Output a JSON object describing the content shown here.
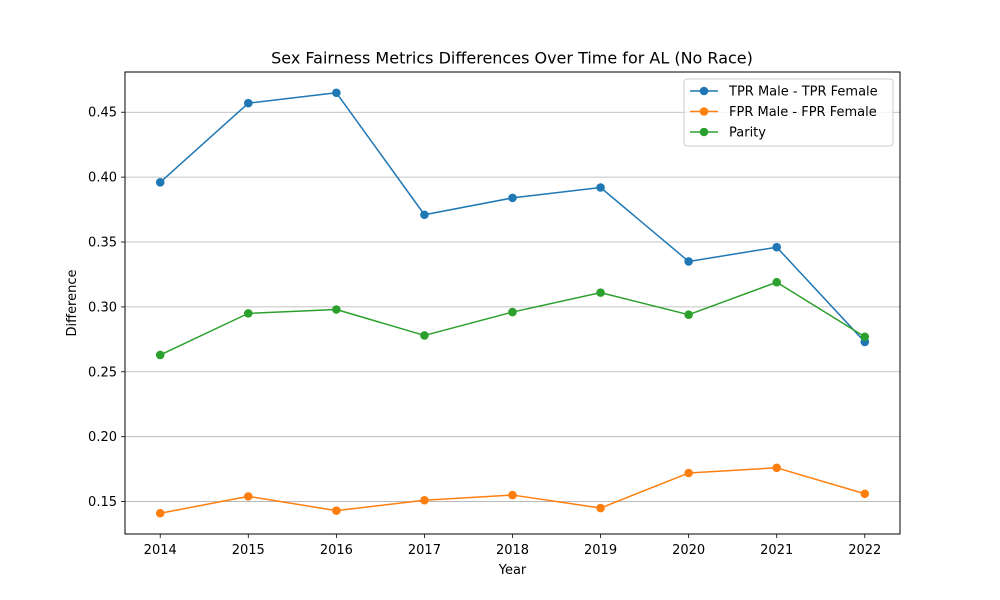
{
  "chart_data": {
    "type": "line",
    "title": "Sex Fairness Metrics Differences Over Time for AL (No Race)",
    "xlabel": "Year",
    "ylabel": "Difference",
    "x": [
      2014,
      2015,
      2016,
      2017,
      2018,
      2019,
      2020,
      2021,
      2022
    ],
    "xlim": [
      2013.6,
      2022.4
    ],
    "ylim": [
      0.125,
      0.481
    ],
    "yticks": [
      0.15,
      0.2,
      0.25,
      0.3,
      0.35,
      0.4,
      0.45
    ],
    "ytick_labels": [
      "0.15",
      "0.20",
      "0.25",
      "0.30",
      "0.35",
      "0.40",
      "0.45"
    ],
    "xtick_labels": [
      "2014",
      "2015",
      "2016",
      "2017",
      "2018",
      "2019",
      "2020",
      "2021",
      "2022"
    ],
    "grid": "y-axis",
    "legend_position": "top-right",
    "series": [
      {
        "name": "TPR Male - TPR Female",
        "color": "#1f77b4",
        "values": [
          0.396,
          0.457,
          0.465,
          0.371,
          0.384,
          0.392,
          0.335,
          0.346,
          0.273
        ]
      },
      {
        "name": "FPR Male - FPR Female",
        "color": "#ff7f0e",
        "values": [
          0.141,
          0.154,
          0.143,
          0.151,
          0.155,
          0.145,
          0.172,
          0.176,
          0.156
        ]
      },
      {
        "name": "Parity",
        "color": "#2ca02c",
        "values": [
          0.263,
          0.295,
          0.298,
          0.278,
          0.296,
          0.311,
          0.294,
          0.319,
          0.277
        ]
      }
    ]
  }
}
